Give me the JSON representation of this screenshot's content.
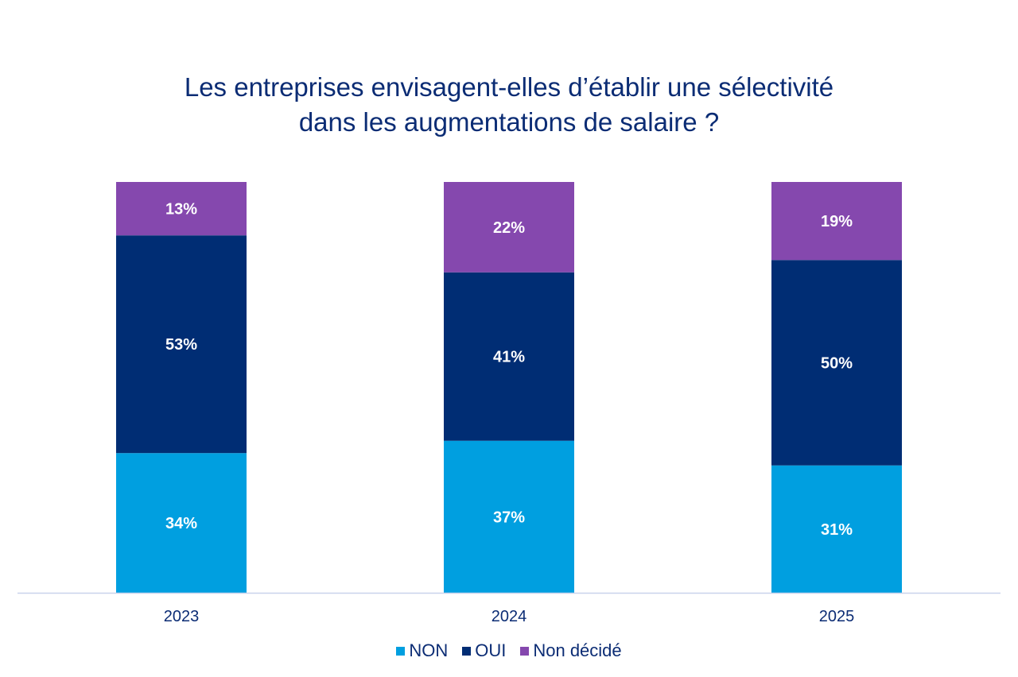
{
  "chart_data": {
    "type": "bar",
    "stacked": true,
    "title_lines": [
      "Les entreprises envisagent-elles d’établir une sélectivité",
      "dans les augmentations de salaire ?"
    ],
    "categories": [
      "2023",
      "2024",
      "2025"
    ],
    "series": [
      {
        "name": "NON",
        "values": [
          34,
          37,
          31
        ],
        "color": "#009FE0"
      },
      {
        "name": "OUI",
        "values": [
          53,
          41,
          50
        ],
        "color": "#002D74"
      },
      {
        "name": "Non décidé",
        "values": [
          13,
          22,
          19
        ],
        "color": "#8548AE"
      }
    ],
    "value_suffix": "%",
    "ylim": [
      0,
      100
    ],
    "grid": false,
    "legend_position": "bottom"
  }
}
